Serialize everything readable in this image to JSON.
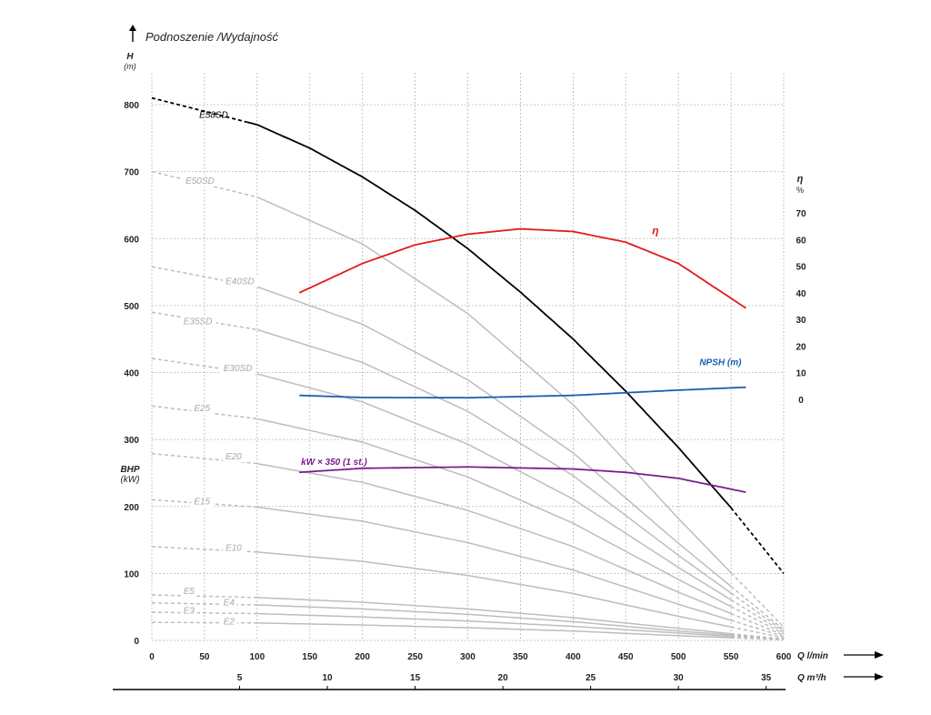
{
  "chart_data": {
    "type": "line",
    "title": "Podnoszenie /Wydajność",
    "ylabel": "H",
    "ylabel_unit": "(m)",
    "ylabel2": "BHP",
    "ylabel2_unit": "(kW)",
    "eta_label": "η",
    "eta_unit": "%",
    "xlabel_lmin": "Q l/min",
    "xlabel_m3h": "Q m³/h",
    "xlim": [
      0,
      600
    ],
    "ylim": [
      0,
      800
    ],
    "x_ticks": [
      0,
      50,
      100,
      150,
      200,
      250,
      300,
      350,
      400,
      450,
      500,
      550,
      600
    ],
    "y_ticks": [
      0,
      100,
      200,
      300,
      400,
      500,
      600,
      700,
      800
    ],
    "eta_ticks": [
      0,
      10,
      20,
      30,
      40,
      50,
      60,
      70
    ],
    "m3h_ticks": [
      5,
      10,
      15,
      20,
      25,
      30,
      35
    ],
    "grid": true,
    "colors": {
      "main": "#000000",
      "family": "#bdbdbd",
      "family_label": "#a8a8a8",
      "efficiency": "#e3191c",
      "npsh": "#1761b0",
      "power": "#7a1c8e"
    },
    "series": [
      {
        "name": "E58SD",
        "x": [
          0,
          100,
          150,
          200,
          250,
          300,
          350,
          400,
          450,
          500,
          550,
          600
        ],
        "values": [
          810,
          770,
          735,
          692,
          642,
          585,
          520,
          450,
          372,
          288,
          198,
          100
        ],
        "solid_range": [
          90,
          550
        ],
        "label_x": 45,
        "label_y": 780
      },
      {
        "name": "E50SD",
        "x": [
          0,
          100,
          200,
          300,
          400,
          500,
          600
        ],
        "values": [
          700,
          662,
          592,
          488,
          352,
          182,
          20
        ],
        "solid_range": [
          100,
          550
        ],
        "label_x": 32,
        "label_y": 682
      },
      {
        "name": "E40SD",
        "x": [
          0,
          100,
          200,
          300,
          400,
          500,
          600
        ],
        "values": [
          558,
          528,
          472,
          389,
          280,
          145,
          16
        ],
        "solid_range": [
          100,
          550
        ],
        "label_x": 70,
        "label_y": 532
      },
      {
        "name": "E35SD",
        "x": [
          0,
          100,
          200,
          300,
          400,
          500,
          600
        ],
        "values": [
          490,
          464,
          415,
          342,
          246,
          127,
          14
        ],
        "solid_range": [
          100,
          550
        ],
        "label_x": 30,
        "label_y": 472
      },
      {
        "name": "E30SD",
        "x": [
          0,
          100,
          200,
          300,
          400,
          500,
          600
        ],
        "values": [
          421,
          398,
          356,
          293,
          211,
          109,
          12
        ],
        "solid_range": [
          100,
          550
        ],
        "label_x": 68,
        "label_y": 402
      },
      {
        "name": "E25",
        "x": [
          0,
          100,
          200,
          300,
          400,
          500,
          600
        ],
        "values": [
          350,
          331,
          296,
          244,
          175,
          91,
          10
        ],
        "solid_range": [
          100,
          550
        ],
        "label_x": 40,
        "label_y": 342
      },
      {
        "name": "E20",
        "x": [
          0,
          100,
          200,
          300,
          400,
          500,
          600
        ],
        "values": [
          279,
          264,
          236,
          194,
          140,
          72,
          8
        ],
        "solid_range": [
          100,
          550
        ],
        "label_x": 70,
        "label_y": 270
      },
      {
        "name": "E15",
        "x": [
          0,
          100,
          200,
          300,
          400,
          500,
          600
        ],
        "values": [
          210,
          199,
          178,
          146,
          105,
          54,
          6
        ],
        "solid_range": [
          100,
          550
        ],
        "label_x": 40,
        "label_y": 203
      },
      {
        "name": "E10",
        "x": [
          0,
          100,
          200,
          300,
          400,
          500,
          600
        ],
        "values": [
          140,
          132,
          118,
          97,
          70,
          36,
          4
        ],
        "solid_range": [
          100,
          550
        ],
        "label_x": 70,
        "label_y": 134
      },
      {
        "name": "E5",
        "x": [
          0,
          100,
          200,
          300,
          400,
          500,
          600
        ],
        "values": [
          68,
          64,
          57,
          47,
          34,
          18,
          2
        ],
        "solid_range": [
          100,
          550
        ],
        "label_x": 30,
        "label_y": 69
      },
      {
        "name": "E4",
        "x": [
          0,
          100,
          200,
          300,
          400,
          500,
          600
        ],
        "values": [
          56,
          53,
          47,
          39,
          28,
          14,
          2
        ],
        "solid_range": [
          100,
          550
        ],
        "label_x": 68,
        "label_y": 52
      },
      {
        "name": "E3",
        "x": [
          0,
          100,
          200,
          300,
          400,
          500,
          600
        ],
        "values": [
          42,
          40,
          35,
          29,
          21,
          11,
          1
        ],
        "solid_range": [
          100,
          550
        ],
        "label_x": 30,
        "label_y": 40
      },
      {
        "name": "E2",
        "x": [
          0,
          100,
          200,
          300,
          400,
          500,
          600
        ],
        "values": [
          27,
          26,
          23,
          19,
          14,
          7,
          1
        ],
        "solid_range": [
          100,
          550
        ],
        "label_x": 68,
        "label_y": 24
      }
    ],
    "efficiency": {
      "name": "η",
      "x": [
        140,
        200,
        250,
        300,
        350,
        400,
        450,
        500,
        565
      ],
      "values": [
        40,
        51,
        58,
        62,
        64,
        63,
        59,
        51,
        34
      ],
      "label_x": 475,
      "label_y": 62
    },
    "npsh": {
      "name": "NPSH (m)",
      "x": [
        140,
        200,
        300,
        400,
        500,
        565
      ],
      "values": [
        1.5,
        0.7,
        0.6,
        1.5,
        3.5,
        4.6
      ],
      "label_x": 520,
      "label_y": 13
    },
    "power": {
      "name": "kW × 350 (1 st.)",
      "x": [
        140,
        200,
        300,
        400,
        450,
        500,
        565
      ],
      "values": [
        251,
        257,
        259,
        256,
        251,
        242,
        221
      ],
      "label_x": 140,
      "label_y": 270
    }
  }
}
